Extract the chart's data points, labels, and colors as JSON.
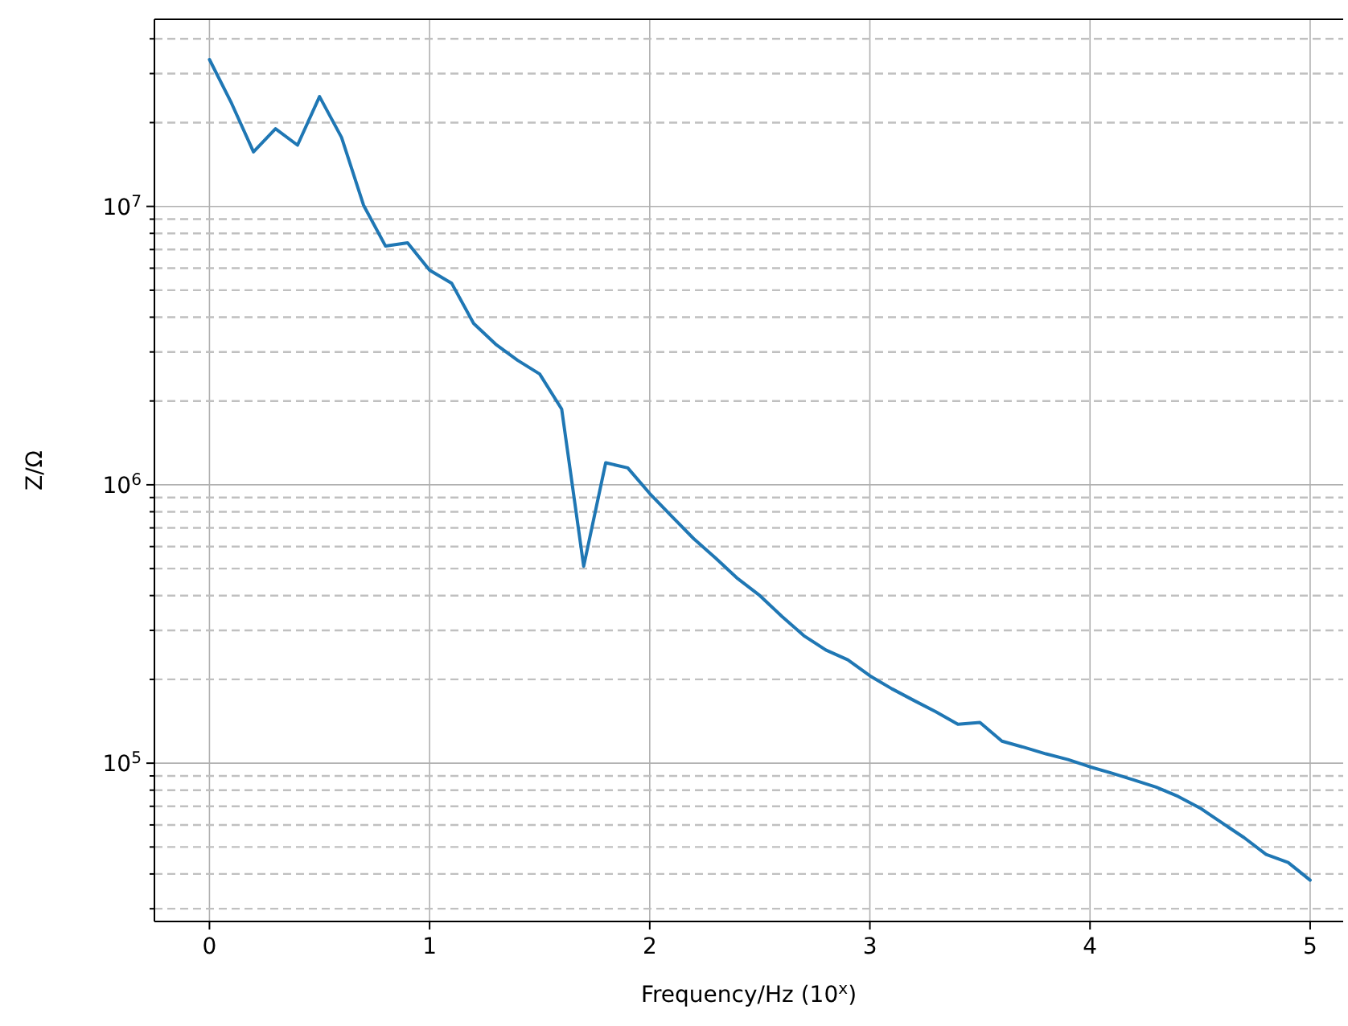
{
  "chart_data": {
    "type": "line",
    "xlabel": "Frequency/Hz (10$^{x}$)",
    "ylabel": "Z/Ω",
    "log": "y",
    "grid": true,
    "marker": "none",
    "line_style": "solid",
    "x": [
      0,
      0.1,
      0.2,
      0.3,
      0.4,
      0.5,
      0.6,
      0.7,
      0.8,
      0.9,
      1.0,
      1.1,
      1.2,
      1.3,
      1.4,
      1.5,
      1.6,
      1.7,
      1.8,
      1.9,
      2.0,
      2.1,
      2.2,
      2.3,
      2.4,
      2.5,
      2.6,
      2.7,
      2.8,
      2.9,
      3.0,
      3.1,
      3.2,
      3.3,
      3.4,
      3.5,
      3.6,
      3.7,
      3.8,
      3.9,
      4.0,
      4.1,
      4.2,
      4.3,
      4.4,
      4.5,
      4.6,
      4.7,
      4.8,
      4.9,
      5.0
    ],
    "series": [
      {
        "color": "#1f77b4",
        "values": [
          33700000,
          23500000,
          15700000,
          19000000,
          16600000,
          24800000,
          17700000,
          10100000,
          7200000,
          7400000,
          5900000,
          5300000,
          3800000,
          3200000,
          2800000,
          2500000,
          1870000,
          510000,
          1200000,
          1150000,
          930000,
          770000,
          640000,
          545000,
          460000,
          400000,
          337000,
          287000,
          255000,
          235000,
          206000,
          185000,
          168000,
          153000,
          138000,
          140000,
          120000,
          114000,
          108000,
          103000,
          97000,
          92000,
          87000,
          82000,
          76000,
          69000,
          61000,
          54000,
          47000,
          44000,
          38000
        ]
      }
    ],
    "xlim": [
      -0.25,
      5.15
    ],
    "xticks": [
      0,
      1,
      2,
      3,
      4,
      5
    ],
    "ylim": [
      27000,
      47000000
    ],
    "yticks": [
      {
        "value": 30000,
        "label": null
      },
      {
        "value": 40000,
        "label": null
      },
      {
        "value": 50000,
        "label": null
      },
      {
        "value": 60000,
        "label": null
      },
      {
        "value": 70000,
        "label": null
      },
      {
        "value": 80000,
        "label": null
      },
      {
        "value": 90000,
        "label": null
      },
      {
        "value": 100000,
        "label": "10$^{5}$"
      },
      {
        "value": 200000,
        "label": null
      },
      {
        "value": 300000,
        "label": null
      },
      {
        "value": 400000,
        "label": null
      },
      {
        "value": 500000,
        "label": null
      },
      {
        "value": 600000,
        "label": null
      },
      {
        "value": 700000,
        "label": null
      },
      {
        "value": 800000,
        "label": null
      },
      {
        "value": 900000,
        "label": null
      },
      {
        "value": 1000000,
        "label": "10$^{6}$"
      },
      {
        "value": 2000000,
        "label": null
      },
      {
        "value": 3000000,
        "label": null
      },
      {
        "value": 4000000,
        "label": null
      },
      {
        "value": 5000000,
        "label": null
      },
      {
        "value": 6000000,
        "label": null
      },
      {
        "value": 7000000,
        "label": null
      },
      {
        "value": 8000000,
        "label": null
      },
      {
        "value": 9000000,
        "label": null
      },
      {
        "value": 10000000,
        "label": "10$^{7}$"
      },
      {
        "value": 20000000,
        "label": null
      },
      {
        "value": 30000000,
        "label": null
      },
      {
        "value": 40000000,
        "label": null
      }
    ]
  }
}
